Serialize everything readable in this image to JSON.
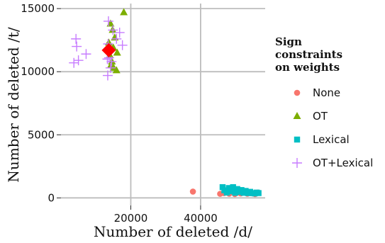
{
  "chart_data": {
    "type": "scatter",
    "xlabel": "Number of deleted /d/",
    "ylabel": "Number of deleted /t/",
    "xlim": [
      0,
      58500
    ],
    "ylim": [
      -600,
      15400
    ],
    "xticks": [
      20000,
      40000
    ],
    "yticks": [
      0,
      5000,
      10000,
      15000
    ],
    "grid": true,
    "legend": {
      "title_lines": [
        "Sign",
        "constraints",
        "on weights"
      ],
      "placement": "right"
    },
    "colors": {
      "None": "#f8766d",
      "OT": "#7cae00",
      "Lexical": "#00bfc4",
      "OT+Lexical": "#c77cff",
      "highlight": "#ff0000"
    },
    "series": [
      {
        "name": "None",
        "marker": "circle",
        "points": [
          [
            37800,
            500
          ],
          [
            45600,
            320
          ],
          [
            46700,
            380
          ],
          [
            47400,
            450
          ],
          [
            48200,
            330
          ],
          [
            49000,
            520
          ],
          [
            49800,
            300
          ],
          [
            50600,
            420
          ],
          [
            51500,
            350
          ],
          [
            52300,
            480
          ],
          [
            53400,
            330
          ],
          [
            54500,
            380
          ],
          [
            55600,
            300
          ],
          [
            56400,
            420
          ]
        ]
      },
      {
        "name": "OT",
        "marker": "triangle",
        "points": [
          [
            18000,
            14700
          ],
          [
            14200,
            13800
          ],
          [
            14800,
            13300
          ],
          [
            15400,
            12700
          ],
          [
            13700,
            12300
          ],
          [
            15000,
            11900
          ],
          [
            14000,
            11300
          ],
          [
            14600,
            10800
          ],
          [
            15100,
            10300
          ],
          [
            15900,
            10100
          ],
          [
            14300,
            10500
          ],
          [
            16100,
            11500
          ]
        ]
      },
      {
        "name": "Lexical",
        "marker": "square",
        "points": [
          [
            46300,
            850
          ],
          [
            46800,
            600
          ],
          [
            47500,
            420
          ],
          [
            48100,
            780
          ],
          [
            48700,
            520
          ],
          [
            49300,
            850
          ],
          [
            49900,
            400
          ],
          [
            50500,
            700
          ],
          [
            51100,
            480
          ],
          [
            51700,
            620
          ],
          [
            52300,
            400
          ],
          [
            52900,
            550
          ],
          [
            53600,
            380
          ],
          [
            54200,
            480
          ],
          [
            54900,
            380
          ],
          [
            55500,
            350
          ],
          [
            56100,
            420
          ],
          [
            56600,
            380
          ]
        ]
      },
      {
        "name": "OT+Lexical",
        "marker": "plus",
        "points": [
          [
            4300,
            12600
          ],
          [
            4500,
            12000
          ],
          [
            3700,
            10700
          ],
          [
            5000,
            10900
          ],
          [
            7200,
            11400
          ],
          [
            13600,
            14000
          ],
          [
            14900,
            13300
          ],
          [
            16800,
            13100
          ],
          [
            13500,
            12200
          ],
          [
            15900,
            12600
          ],
          [
            17600,
            12100
          ],
          [
            13800,
            11100
          ],
          [
            13300,
            11000
          ],
          [
            14500,
            10800
          ],
          [
            13400,
            9700
          ],
          [
            14200,
            10300
          ]
        ]
      },
      {
        "name": "highlight",
        "marker": "diamond",
        "points": [
          [
            13700,
            11700
          ]
        ]
      }
    ]
  }
}
